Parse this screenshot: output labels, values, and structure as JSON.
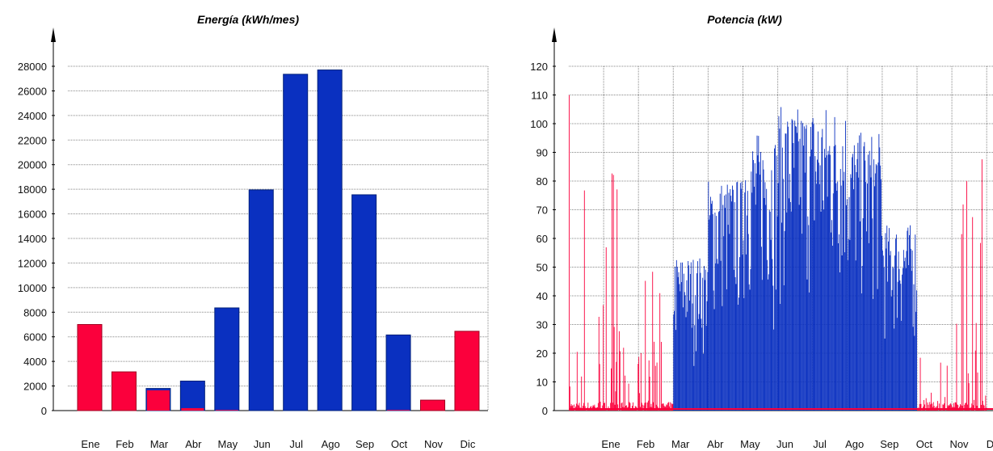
{
  "colors": {
    "consumption": "#fb003c",
    "generation": "#0a30c0",
    "grid": "#888888",
    "axis": "#000000"
  },
  "chart_data": [
    {
      "type": "bar",
      "title": "Energía (kWh/mes)",
      "categories": [
        "Ene",
        "Feb",
        "Mar",
        "Abr",
        "May",
        "Jun",
        "Jul",
        "Ago",
        "Sep",
        "Oct",
        "Nov",
        "Dic"
      ],
      "series": [
        {
          "values": [
            7000,
            3150,
            1650,
            200,
            50,
            0,
            0,
            0,
            0,
            50,
            850,
            6450
          ]
        },
        {
          "values": [
            0,
            0,
            1800,
            2400,
            8350,
            17950,
            27350,
            27700,
            17550,
            6150,
            0,
            0
          ]
        }
      ],
      "yticks": [
        0,
        2000,
        4000,
        6000,
        8000,
        10000,
        12000,
        14000,
        16000,
        18000,
        20000,
        22000,
        24000,
        26000,
        28000
      ],
      "ylim": [
        0,
        28000
      ],
      "grid": true
    },
    {
      "type": "area",
      "title": "Potencia (kW)",
      "categories": [
        "Ene",
        "Feb",
        "Mar",
        "Abr",
        "May",
        "Jun",
        "Jul",
        "Ago",
        "Sep",
        "Oct",
        "Nov",
        "Dic"
      ],
      "series": [
        {
          "values": [
            114,
            86,
            74,
            5,
            3,
            2,
            2,
            2,
            3,
            3,
            20,
            90
          ]
        },
        {
          "values": [
            0,
            0,
            12,
            54,
            81,
            97,
            106,
            107,
            97,
            65,
            0,
            0
          ]
        }
      ],
      "yticks": [
        0,
        10,
        20,
        30,
        40,
        50,
        60,
        70,
        80,
        90,
        100,
        110,
        120
      ],
      "ylim": [
        0,
        120
      ],
      "grid": true
    }
  ]
}
